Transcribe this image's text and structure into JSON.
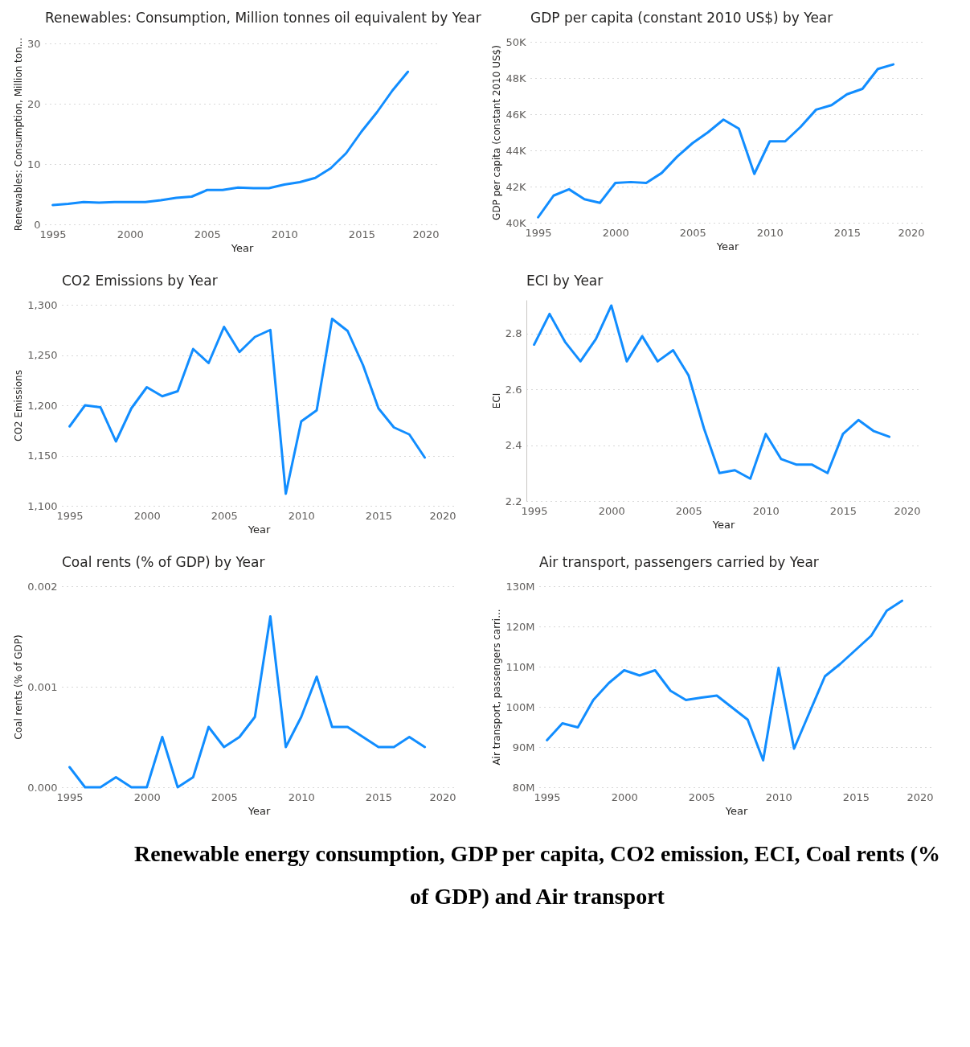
{
  "chart_data": [
    {
      "type": "line",
      "title": "Renewables: Consumption, Million tonnes oil equivalent by Year",
      "xlabel": "Year",
      "ylabel": "Renewables: Consumption, Million ton...",
      "x": [
        1995,
        1996,
        1997,
        1998,
        1999,
        2000,
        2001,
        2002,
        2003,
        2004,
        2005,
        2006,
        2007,
        2008,
        2009,
        2010,
        2011,
        2012,
        2013,
        2014,
        2015,
        2016,
        2017,
        2018
      ],
      "series": [
        {
          "color": "#118dff",
          "values": [
            3.2,
            3.4,
            3.7,
            3.6,
            3.7,
            3.7,
            3.7,
            4.0,
            4.4,
            4.6,
            5.7,
            5.7,
            6.1,
            6.0,
            6.0,
            6.6,
            7.0,
            7.7,
            9.3,
            11.8,
            15.4,
            18.6,
            22.2,
            25.3
          ]
        }
      ],
      "xlim": [
        1994.5,
        2020
      ],
      "xticks": [
        1995,
        2000,
        2005,
        2010,
        2015,
        2020
      ],
      "ylim": [
        0,
        30
      ],
      "yticks": [
        0,
        10,
        20,
        30
      ],
      "grid": "y",
      "marker": "none",
      "line_style": "solid"
    },
    {
      "type": "line",
      "title": "GDP per capita (constant 2010 US$) by Year",
      "xlabel": "Year",
      "ylabel": "GDP per capita (constant 2010 US$)",
      "x": [
        1995,
        1996,
        1997,
        1998,
        1999,
        2000,
        2001,
        2002,
        2003,
        2004,
        2005,
        2006,
        2007,
        2008,
        2009,
        2010,
        2011,
        2012,
        2013,
        2014,
        2015,
        2016,
        2017,
        2018
      ],
      "series": [
        {
          "color": "#118dff",
          "values": [
            40300,
            41500,
            41850,
            41300,
            41100,
            42200,
            42250,
            42200,
            42750,
            43650,
            44400,
            45000,
            45700,
            45200,
            42700,
            44500,
            44500,
            45300,
            46250,
            46500,
            47100,
            47400,
            48500,
            48750
          ]
        }
      ],
      "xlim": [
        1994.5,
        2020
      ],
      "xticks": [
        1995,
        2000,
        2005,
        2010,
        2015,
        2020
      ],
      "ylim": [
        40000,
        50000
      ],
      "yticks": [
        {
          "value": 40000,
          "label": "40K"
        },
        {
          "value": 42000,
          "label": "42K"
        },
        {
          "value": 44000,
          "label": "44K"
        },
        {
          "value": 46000,
          "label": "46K"
        },
        {
          "value": 48000,
          "label": "48K"
        },
        {
          "value": 50000,
          "label": "50K"
        }
      ],
      "grid": "y",
      "marker": "none",
      "line_style": "solid"
    },
    {
      "type": "line",
      "title": "CO2 Emissions by Year",
      "xlabel": "Year",
      "ylabel": "CO2 Emissions",
      "x": [
        1995,
        1996,
        1997,
        1998,
        1999,
        2000,
        2001,
        2002,
        2003,
        2004,
        2005,
        2006,
        2007,
        2008,
        2009,
        2010,
        2011,
        2012,
        2013,
        2014,
        2015,
        2016,
        2017,
        2018
      ],
      "series": [
        {
          "color": "#118dff",
          "values": [
            1179,
            1200,
            1198,
            1164,
            1197,
            1218,
            1209,
            1214,
            1256,
            1242,
            1278,
            1253,
            1268,
            1275,
            1112,
            1184,
            1195,
            1286,
            1274,
            1240,
            1197,
            1178,
            1171,
            1148
          ]
        }
      ],
      "xlim": [
        1994.5,
        2020
      ],
      "xticks": [
        1995,
        2000,
        2005,
        2010,
        2015,
        2020
      ],
      "ylim": [
        1100,
        1300
      ],
      "yticks": [
        {
          "value": 1100,
          "label": "1,100"
        },
        {
          "value": 1150,
          "label": "1,150"
        },
        {
          "value": 1200,
          "label": "1,200"
        },
        {
          "value": 1250,
          "label": "1,250"
        },
        {
          "value": 1300,
          "label": "1,300"
        }
      ],
      "grid": "y",
      "marker": "none",
      "line_style": "solid"
    },
    {
      "type": "line",
      "title": "ECI by Year",
      "xlabel": "Year",
      "ylabel": "ECI",
      "x": [
        1995,
        1996,
        1997,
        1998,
        1999,
        2000,
        2001,
        2002,
        2003,
        2004,
        2005,
        2006,
        2007,
        2008,
        2009,
        2010,
        2011,
        2012,
        2013,
        2014,
        2015,
        2016,
        2017,
        2018
      ],
      "series": [
        {
          "color": "#118dff",
          "values": [
            2.76,
            2.87,
            2.77,
            2.7,
            2.78,
            2.9,
            2.7,
            2.79,
            2.7,
            2.74,
            2.65,
            2.46,
            2.3,
            2.31,
            2.28,
            2.44,
            2.35,
            2.33,
            2.33,
            2.3,
            2.44,
            2.49,
            2.45,
            2.43
          ]
        }
      ],
      "xlim": [
        1994.5,
        2020
      ],
      "xticks": [
        1995,
        2000,
        2005,
        2010,
        2015,
        2020
      ],
      "ylim": [
        2.2,
        2.92
      ],
      "yticks": [
        2.2,
        2.4,
        2.6,
        2.8
      ],
      "grid": "y",
      "marker": "none",
      "line_style": "solid"
    },
    {
      "type": "line",
      "title": "Coal rents (% of GDP) by Year",
      "xlabel": "Year",
      "ylabel": "Coal rents (% of GDP)",
      "x": [
        1995,
        1996,
        1997,
        1998,
        1999,
        2000,
        2001,
        2002,
        2003,
        2004,
        2005,
        2006,
        2007,
        2008,
        2009,
        2010,
        2011,
        2012,
        2013,
        2014,
        2015,
        2016,
        2017,
        2018
      ],
      "series": [
        {
          "color": "#118dff",
          "values": [
            0.0002,
            0,
            0,
            0.0001,
            0,
            0,
            0.0005,
            0,
            0.0001,
            0.0006,
            0.0004,
            0.0005,
            0.0007,
            0.0017,
            0.0004,
            0.0007,
            0.0011,
            0.0006,
            0.0006,
            0.0005,
            0.0004,
            0.0004,
            0.0005,
            0.0004
          ]
        }
      ],
      "xlim": [
        1994.5,
        2020
      ],
      "xticks": [
        1995,
        2000,
        2005,
        2010,
        2015,
        2020
      ],
      "ylim": [
        0,
        0.002
      ],
      "yticks": [
        {
          "value": 0,
          "label": "0.000"
        },
        0.001,
        0.002
      ],
      "grid": "y",
      "marker": "none",
      "line_style": "solid"
    },
    {
      "type": "line",
      "title": "Air transport, passengers carried by Year",
      "xlabel": "Year",
      "ylabel": "Air transport, passengers carri...",
      "x": [
        1995,
        1996,
        1997,
        1998,
        1999,
        2000,
        2001,
        2002,
        2003,
        2004,
        2005,
        2006,
        2007,
        2008,
        2009,
        2010,
        2011,
        2012,
        2013,
        2014,
        2015,
        2016,
        2017,
        2018
      ],
      "series": [
        {
          "color": "#118dff",
          "values": [
            91700000,
            95900000,
            94900000,
            101700000,
            105900000,
            109100000,
            107800000,
            109100000,
            104000000,
            101700000,
            102300000,
            102800000,
            99800000,
            96800000,
            86700000,
            109700000,
            89600000,
            98600000,
            107600000,
            110700000,
            114200000,
            117700000,
            123900000,
            126400000
          ]
        }
      ],
      "xlim": [
        1994.5,
        2020
      ],
      "xticks": [
        1995,
        2000,
        2005,
        2010,
        2015,
        2020
      ],
      "ylim": [
        80000000,
        130000000
      ],
      "yticks": [
        {
          "value": 80000000,
          "label": "80M"
        },
        {
          "value": 90000000,
          "label": "90M"
        },
        {
          "value": 100000000,
          "label": "100M"
        },
        {
          "value": 110000000,
          "label": "110M"
        },
        {
          "value": 120000000,
          "label": "120M"
        },
        {
          "value": 130000000,
          "label": "130M"
        }
      ],
      "grid": "y",
      "marker": "none",
      "line_style": "solid",
      "annotations": [
        "Renewable energy consumption, GDP per capita, CO2 emission, ECI, Coal rents (% of GDP) and Air transport"
      ]
    }
  ]
}
